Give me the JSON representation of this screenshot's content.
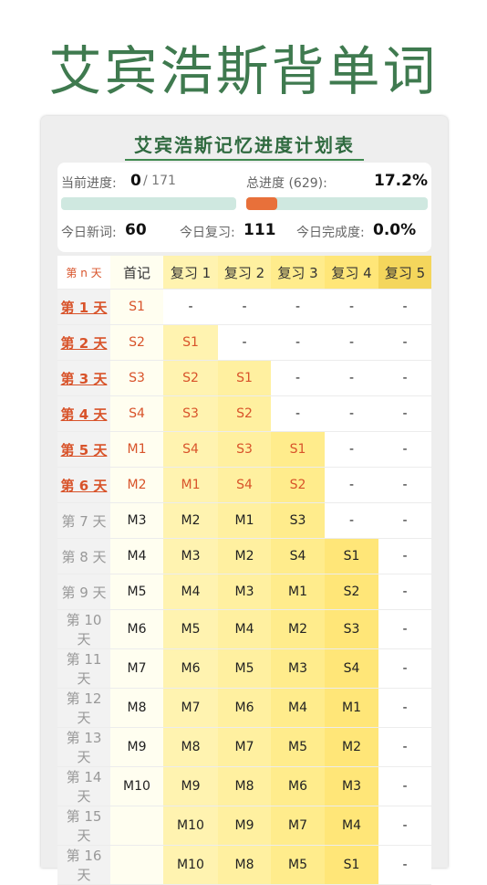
{
  "app_title": "艾宾浩斯背单词",
  "plan_title": "艾宾浩斯记忆进度计划表",
  "stats": {
    "current_label": "当前进度:",
    "current_value": "0",
    "current_total": "/ 171",
    "current_progress": 0.0,
    "total_label": "总进度 (629):",
    "total_value": "17.2%",
    "total_progress": 0.172,
    "new_label": "今日新词:",
    "new_value": "60",
    "review_label": "今日复习:",
    "review_value": "111",
    "complete_label": "今日完成度:",
    "complete_value": "0.0%"
  },
  "table": {
    "headers": [
      "第 n 天",
      "首记",
      "复习 1",
      "复习 2",
      "复习 3",
      "复习 4",
      "复习 5"
    ],
    "header_colors": [
      "#ffffff",
      "#fffef0",
      "#fff3b0",
      "#fff0a0",
      "#ffec8c",
      "#ffe678",
      "#f4d65c"
    ],
    "completed_days": 6,
    "rows": [
      [
        "第 1 天",
        "S1",
        "-",
        "-",
        "-",
        "-",
        "-"
      ],
      [
        "第 2 天",
        "S2",
        "S1",
        "-",
        "-",
        "-",
        "-"
      ],
      [
        "第 3 天",
        "S3",
        "S2",
        "S1",
        "-",
        "-",
        "-"
      ],
      [
        "第 4 天",
        "S4",
        "S3",
        "S2",
        "-",
        "-",
        "-"
      ],
      [
        "第 5 天",
        "M1",
        "S4",
        "S3",
        "S1",
        "-",
        "-"
      ],
      [
        "第 6 天",
        "M2",
        "M1",
        "S4",
        "S2",
        "-",
        "-"
      ],
      [
        "第 7 天",
        "M3",
        "M2",
        "M1",
        "S3",
        "-",
        "-"
      ],
      [
        "第 8 天",
        "M4",
        "M3",
        "M2",
        "S4",
        "S1",
        "-"
      ],
      [
        "第 9 天",
        "M5",
        "M4",
        "M3",
        "M1",
        "S2",
        "-"
      ],
      [
        "第 10 天",
        "M6",
        "M5",
        "M4",
        "M2",
        "S3",
        "-"
      ],
      [
        "第 11 天",
        "M7",
        "M6",
        "M5",
        "M3",
        "S4",
        "-"
      ],
      [
        "第 12 天",
        "M8",
        "M7",
        "M6",
        "M4",
        "M1",
        "-"
      ],
      [
        "第 13 天",
        "M9",
        "M8",
        "M7",
        "M5",
        "M2",
        "-"
      ],
      [
        "第 14 天",
        "M10",
        "M9",
        "M8",
        "M6",
        "M3",
        "-"
      ],
      [
        "第 15 天",
        "",
        "M10",
        "M9",
        "M7",
        "M4",
        "-"
      ],
      [
        "第 16 天",
        "",
        "M10",
        "M8",
        "M5",
        "S1",
        "-"
      ]
    ]
  }
}
